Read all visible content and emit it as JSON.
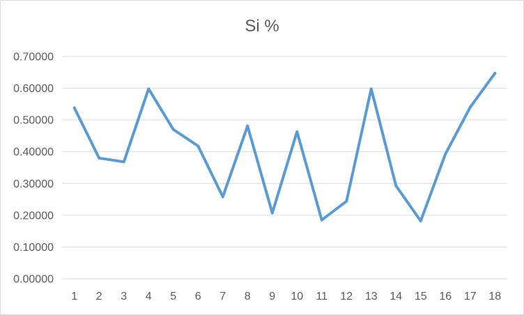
{
  "chart_data": {
    "type": "line",
    "title": "Si %",
    "xlabel": "",
    "ylabel": "",
    "categories": [
      "1",
      "2",
      "3",
      "4",
      "5",
      "6",
      "7",
      "8",
      "9",
      "10",
      "11",
      "12",
      "13",
      "14",
      "15",
      "16",
      "17",
      "18"
    ],
    "series": [
      {
        "values": [
          0.538,
          0.38,
          0.368,
          0.598,
          0.47,
          0.418,
          0.258,
          0.481,
          0.207,
          0.463,
          0.185,
          0.244,
          0.598,
          0.293,
          0.182,
          0.393,
          0.54,
          0.647
        ]
      }
    ],
    "ylim": [
      0,
      0.7
    ],
    "yticks": [
      "0.00000",
      "0.10000",
      "0.20000",
      "0.30000",
      "0.40000",
      "0.50000",
      "0.60000",
      "0.70000"
    ],
    "grid": true,
    "legend": "none",
    "line_color": "#5b9bd5"
  }
}
